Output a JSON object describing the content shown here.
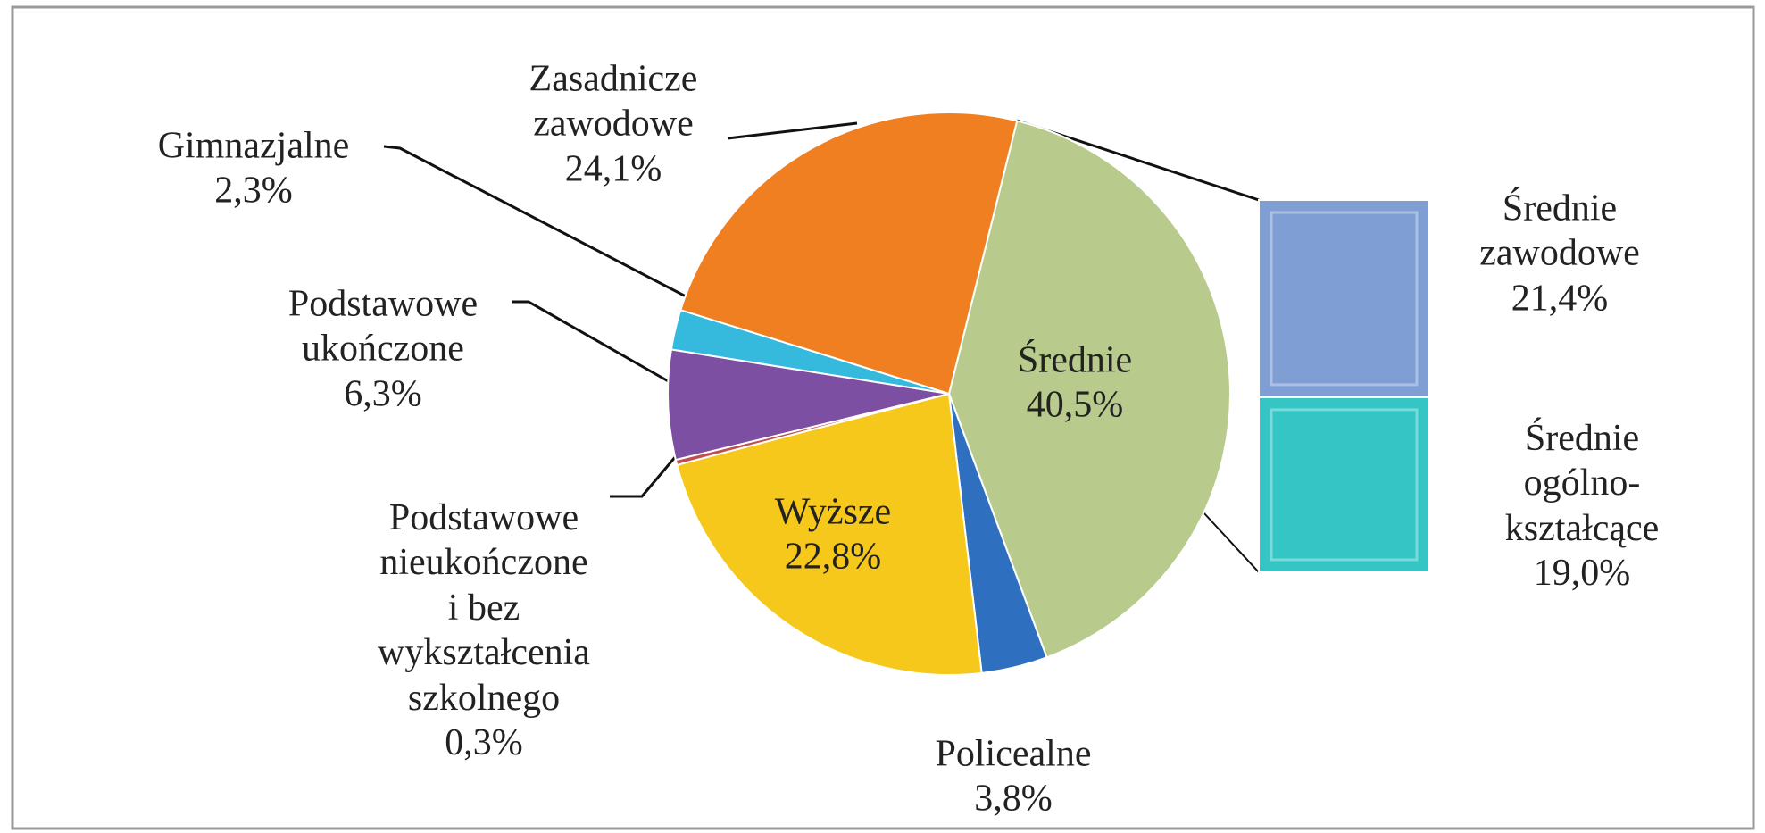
{
  "chart_data": {
    "type": "pie",
    "categories": [
      "Średnie",
      "Policealne",
      "Wyższe",
      "Podstawowe\nnieukończone\ni bez\nwykształcenia\nszkolnego",
      "Podstawowe\nukończone",
      "Gimnazjalne",
      "Zasadnicze\nzawodowe"
    ],
    "values": [
      40.5,
      3.8,
      22.8,
      0.3,
      6.3,
      2.3,
      24.1
    ],
    "value_labels": [
      "40,5%",
      "3,8%",
      "22,8%",
      "0,3%",
      "6,3%",
      "2,3%",
      "24,1%"
    ],
    "colors": [
      "#b8cb8c",
      "#2f6fc0",
      "#f6c81c",
      "#c0504d",
      "#7d4fa3",
      "#35b9dc",
      "#f07f22"
    ],
    "breakdown": {
      "categories": [
        "Średnie\nzawodowe",
        "Średnie\nogólno-\nkształcące"
      ],
      "values": [
        21.4,
        19.0
      ],
      "value_labels": [
        "21,4%",
        "19,0%"
      ],
      "colors": [
        "#7f9fd4",
        "#36c5c5"
      ]
    }
  }
}
